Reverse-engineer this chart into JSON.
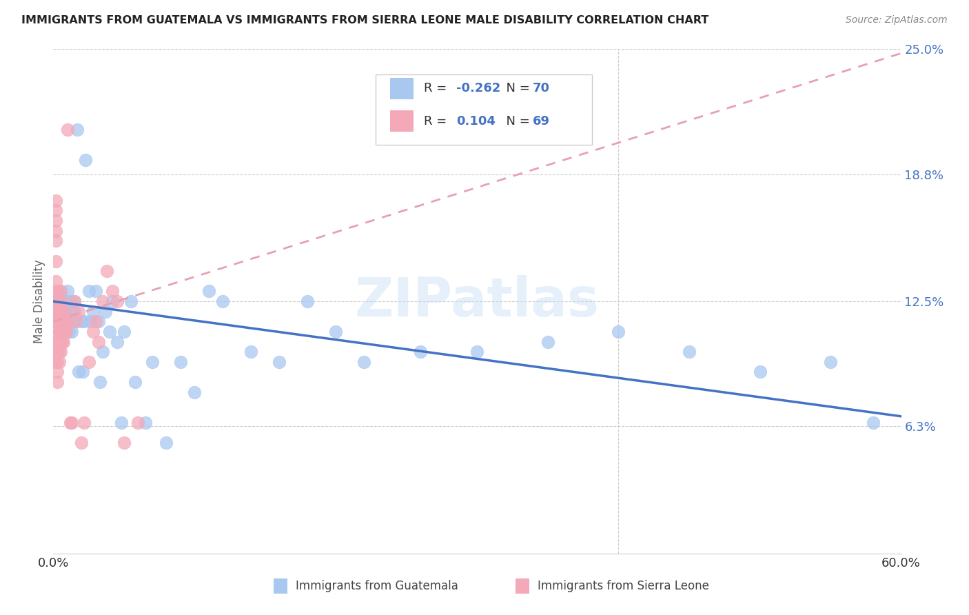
{
  "title": "IMMIGRANTS FROM GUATEMALA VS IMMIGRANTS FROM SIERRA LEONE MALE DISABILITY CORRELATION CHART",
  "source": "Source: ZipAtlas.com",
  "ylabel": "Male Disability",
  "xlim": [
    0.0,
    0.6
  ],
  "ylim": [
    0.0,
    0.25
  ],
  "yticks": [
    0.063,
    0.125,
    0.188,
    0.25
  ],
  "ytick_labels": [
    "6.3%",
    "12.5%",
    "18.8%",
    "25.0%"
  ],
  "color_guatemala": "#a8c8f0",
  "color_sierra_leone": "#f4a8b8",
  "trendline_guatemala_color": "#4472c4",
  "trendline_sierra_leone_color": "#e8a0b0",
  "R_guatemala": -0.262,
  "N_guatemala": 70,
  "R_sierra_leone": 0.104,
  "N_sierra_leone": 69,
  "watermark": "ZIPatlas",
  "trendline_guatemala": [
    0.125,
    0.068
  ],
  "trendline_sierra_leone": [
    0.115,
    0.248
  ],
  "guatemala_x": [
    0.003,
    0.004,
    0.004,
    0.004,
    0.005,
    0.005,
    0.006,
    0.006,
    0.007,
    0.007,
    0.007,
    0.008,
    0.008,
    0.008,
    0.009,
    0.009,
    0.01,
    0.01,
    0.01,
    0.011,
    0.011,
    0.012,
    0.012,
    0.013,
    0.013,
    0.014,
    0.015,
    0.015,
    0.016,
    0.017,
    0.018,
    0.02,
    0.021,
    0.022,
    0.023,
    0.025,
    0.026,
    0.028,
    0.03,
    0.032,
    0.033,
    0.035,
    0.037,
    0.04,
    0.042,
    0.045,
    0.048,
    0.05,
    0.055,
    0.058,
    0.065,
    0.07,
    0.08,
    0.09,
    0.1,
    0.11,
    0.12,
    0.14,
    0.16,
    0.18,
    0.2,
    0.22,
    0.26,
    0.3,
    0.35,
    0.4,
    0.45,
    0.5,
    0.55,
    0.58
  ],
  "guatemala_y": [
    0.125,
    0.12,
    0.115,
    0.11,
    0.13,
    0.12,
    0.115,
    0.11,
    0.12,
    0.115,
    0.11,
    0.125,
    0.12,
    0.115,
    0.12,
    0.115,
    0.13,
    0.125,
    0.12,
    0.115,
    0.11,
    0.125,
    0.12,
    0.115,
    0.11,
    0.12,
    0.125,
    0.12,
    0.115,
    0.21,
    0.09,
    0.115,
    0.09,
    0.115,
    0.195,
    0.13,
    0.115,
    0.12,
    0.13,
    0.115,
    0.085,
    0.1,
    0.12,
    0.11,
    0.125,
    0.105,
    0.065,
    0.11,
    0.125,
    0.085,
    0.065,
    0.095,
    0.055,
    0.095,
    0.08,
    0.13,
    0.125,
    0.1,
    0.095,
    0.125,
    0.11,
    0.095,
    0.1,
    0.1,
    0.105,
    0.11,
    0.1,
    0.09,
    0.095,
    0.065
  ],
  "sierra_leone_x": [
    0.001,
    0.001,
    0.001,
    0.001,
    0.001,
    0.001,
    0.002,
    0.002,
    0.002,
    0.002,
    0.002,
    0.002,
    0.002,
    0.002,
    0.003,
    0.003,
    0.003,
    0.003,
    0.003,
    0.003,
    0.003,
    0.003,
    0.003,
    0.003,
    0.004,
    0.004,
    0.004,
    0.004,
    0.004,
    0.004,
    0.004,
    0.005,
    0.005,
    0.005,
    0.005,
    0.005,
    0.005,
    0.005,
    0.006,
    0.006,
    0.006,
    0.006,
    0.007,
    0.007,
    0.007,
    0.008,
    0.008,
    0.008,
    0.009,
    0.009,
    0.01,
    0.01,
    0.012,
    0.013,
    0.015,
    0.016,
    0.018,
    0.02,
    0.022,
    0.025,
    0.028,
    0.03,
    0.032,
    0.035,
    0.038,
    0.042,
    0.045,
    0.05,
    0.06
  ],
  "sierra_leone_y": [
    0.115,
    0.12,
    0.115,
    0.105,
    0.1,
    0.095,
    0.175,
    0.17,
    0.165,
    0.16,
    0.155,
    0.145,
    0.135,
    0.13,
    0.13,
    0.125,
    0.12,
    0.115,
    0.11,
    0.105,
    0.1,
    0.095,
    0.09,
    0.085,
    0.125,
    0.12,
    0.115,
    0.11,
    0.105,
    0.1,
    0.095,
    0.13,
    0.125,
    0.12,
    0.115,
    0.11,
    0.105,
    0.1,
    0.12,
    0.115,
    0.11,
    0.105,
    0.115,
    0.11,
    0.105,
    0.12,
    0.115,
    0.11,
    0.115,
    0.11,
    0.115,
    0.21,
    0.065,
    0.065,
    0.125,
    0.115,
    0.12,
    0.055,
    0.065,
    0.095,
    0.11,
    0.115,
    0.105,
    0.125,
    0.14,
    0.13,
    0.125,
    0.055,
    0.065
  ]
}
